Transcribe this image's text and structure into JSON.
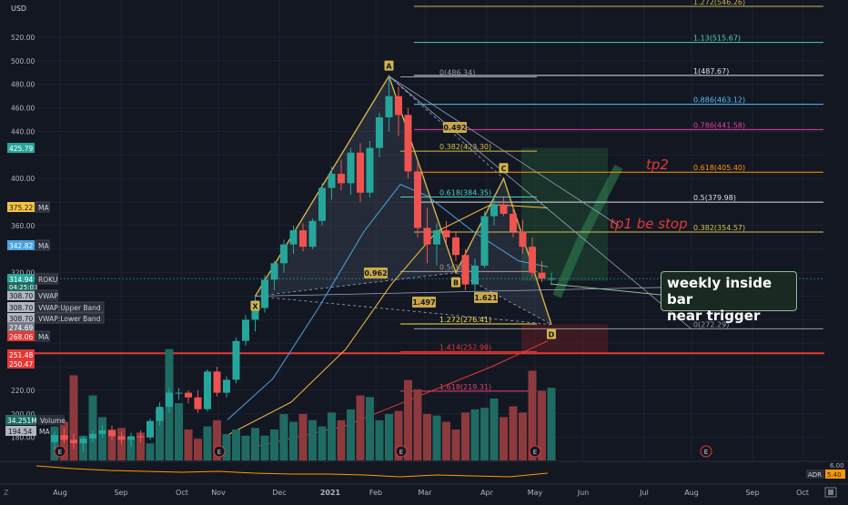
{
  "chart_data": {
    "type": "candlestick",
    "currency": "USD",
    "symbol_tag": "ROKU",
    "last_price": "314.94",
    "countdown": "04:25:03",
    "y_ticks": [
      "520.00",
      "500.00",
      "480.00",
      "460.00",
      "440.00",
      "425.79",
      "400.00",
      "375.22",
      "360.00",
      "342.82",
      "320.00",
      "314.94",
      "308.70",
      "308.70",
      "308.70",
      "274.69",
      "268.06",
      "251.48",
      "250.47",
      "220.00",
      "200.00",
      "180.00"
    ],
    "x_ticks": [
      "Aug",
      "Sep",
      "Oct",
      "Nov",
      "Dec",
      "2021",
      "Feb",
      "Mar",
      "Apr",
      "May",
      "Jun",
      "Jul",
      "Aug",
      "Sep",
      "Oct"
    ],
    "price_tags": [
      {
        "price": "425.79",
        "color": "#26a69a",
        "label": ""
      },
      {
        "price": "375.22",
        "color": "#f5c242",
        "label": "MA"
      },
      {
        "price": "342.82",
        "color": "#4aa3df",
        "label": "MA"
      },
      {
        "price": "314.94",
        "color": "#26a69a",
        "label": "ROKU"
      },
      {
        "price": "308.70",
        "color": "#b2b5be",
        "label": "VWAP"
      },
      {
        "price": "308.70",
        "color": "#b2b5be",
        "label": "VWAP:Upper Band"
      },
      {
        "price": "308.70",
        "color": "#b2b5be",
        "label": "VWAP:Lower Band"
      },
      {
        "price": "274.69",
        "color": "#787b86",
        "label": ""
      },
      {
        "price": "268.06",
        "color": "#e53935",
        "label": "MA"
      },
      {
        "price": "251.48",
        "color": "#e53935",
        "label": ""
      },
      {
        "price": "250.47",
        "color": "#e53935",
        "label": ""
      }
    ],
    "candles": [
      [
        176,
        185,
        170,
        182
      ],
      [
        182,
        188,
        175,
        178
      ],
      [
        178,
        183,
        170,
        175
      ],
      [
        175,
        181,
        168,
        179
      ],
      [
        179,
        186,
        176,
        183
      ],
      [
        183,
        190,
        180,
        186
      ],
      [
        186,
        190,
        178,
        181
      ],
      [
        181,
        185,
        174,
        178
      ],
      [
        178,
        184,
        172,
        181
      ],
      [
        181,
        186,
        176,
        180
      ],
      [
        180,
        196,
        178,
        194
      ],
      [
        194,
        210,
        190,
        206
      ],
      [
        206,
        222,
        201,
        218
      ],
      [
        218,
        222,
        212,
        218
      ],
      [
        218,
        220,
        209,
        214
      ],
      [
        214,
        220,
        201,
        204
      ],
      [
        204,
        238,
        202,
        236
      ],
      [
        236,
        240,
        215,
        218
      ],
      [
        218,
        232,
        214,
        229
      ],
      [
        229,
        265,
        226,
        262
      ],
      [
        262,
        284,
        258,
        280
      ],
      [
        280,
        300,
        270,
        290
      ],
      [
        290,
        318,
        286,
        314
      ],
      [
        314,
        330,
        305,
        328
      ],
      [
        328,
        348,
        320,
        344
      ],
      [
        344,
        360,
        336,
        356
      ],
      [
        356,
        362,
        338,
        342
      ],
      [
        342,
        366,
        340,
        364
      ],
      [
        364,
        396,
        360,
        392
      ],
      [
        392,
        410,
        382,
        404
      ],
      [
        404,
        416,
        390,
        396
      ],
      [
        396,
        426,
        386,
        422
      ],
      [
        422,
        430,
        380,
        388
      ],
      [
        388,
        432,
        384,
        426
      ],
      [
        426,
        456,
        418,
        452
      ],
      [
        452,
        487,
        440,
        470
      ],
      [
        470,
        478,
        436,
        454
      ],
      [
        454,
        460,
        400,
        406
      ],
      [
        406,
        414,
        350,
        358
      ],
      [
        358,
        375,
        328,
        344
      ],
      [
        344,
        362,
        326,
        356
      ],
      [
        356,
        364,
        345,
        350
      ],
      [
        350,
        354,
        330,
        335
      ],
      [
        335,
        340,
        305,
        310
      ],
      [
        310,
        332,
        302,
        326
      ],
      [
        326,
        372,
        324,
        368
      ],
      [
        368,
        386,
        360,
        378
      ],
      [
        378,
        385,
        368,
        370
      ],
      [
        370,
        376,
        350,
        355
      ],
      [
        355,
        365,
        336,
        342
      ],
      [
        342,
        350,
        316,
        320
      ],
      [
        320,
        330,
        312,
        315
      ],
      [
        315,
        320,
        310,
        315
      ]
    ],
    "volumes": [
      22,
      25,
      55,
      16,
      42,
      28,
      20,
      21,
      14,
      18,
      11,
      33,
      72,
      37,
      20,
      14,
      22,
      26,
      17,
      20,
      16,
      21,
      16,
      20,
      30,
      25,
      30,
      26,
      22,
      31,
      26,
      33,
      42,
      41,
      26,
      30,
      32,
      52,
      46,
      30,
      29,
      25,
      20,
      31,
      33,
      34,
      40,
      28,
      35,
      31,
      58,
      45,
      47
    ],
    "up_color": "#26a69a",
    "down_color": "#ef5350",
    "ylim": [
      170,
      550
    ],
    "fib_right": [
      {
        "ratio": "1.272(546.26)",
        "price": 546.26,
        "color": "#c9b458"
      },
      {
        "ratio": "1.13(515.67)",
        "price": 515.67,
        "color": "#4dd0c0"
      },
      {
        "ratio": "1(487.67)",
        "price": 487.67,
        "color": "#e0e0e0"
      },
      {
        "ratio": "0.886(463.12)",
        "price": 463.12,
        "color": "#4fc3f7"
      },
      {
        "ratio": "0.786(441.58)",
        "price": 441.58,
        "color": "#e040a0"
      },
      {
        "ratio": "0.618(405.40)",
        "price": 405.4,
        "color": "#ff9800"
      },
      {
        "ratio": "0.5(379.98)",
        "price": 379.98,
        "color": "#e0e0e0"
      },
      {
        "ratio": "0.382(354.57)",
        "price": 354.57,
        "color": "#d4c24a"
      },
      {
        "ratio": "0(272.29)",
        "price": 272.29,
        "color": "#9e9e9e"
      }
    ],
    "fib_left": [
      {
        "ratio": "0(486.34)",
        "price": 486.34,
        "color": "#9e9e9e"
      },
      {
        "ratio": "0.382(423.30)",
        "price": 423.3,
        "color": "#d4c24a"
      },
      {
        "ratio": "0.618(384.35)",
        "price": 384.35,
        "color": "#4dd0c0"
      },
      {
        "ratio": "0.5(321.)",
        "price": 321.0,
        "color": "#9e9e9e"
      },
      {
        "ratio": "1.272(276.41)",
        "price": 276.41,
        "color": "#f5e14a"
      },
      {
        "ratio": "1.414(252.98)",
        "price": 252.98,
        "color": "#e53935"
      },
      {
        "ratio": "1.618(219.31)",
        "price": 219.31,
        "color": "#e04070"
      }
    ],
    "pattern_points": [
      {
        "label": "X",
        "idx": 21,
        "price": 300
      },
      {
        "label": "A",
        "idx": 35,
        "price": 487
      },
      {
        "label": "B",
        "idx": 42,
        "price": 320
      },
      {
        "label": "C",
        "idx": 47,
        "price": 400
      },
      {
        "label": "D",
        "idx": 52,
        "price": 276
      }
    ],
    "pattern_ratios": [
      "0.492",
      "0.962",
      "1.497",
      "1.621"
    ],
    "text_annotations": [
      "tp2",
      "tp1 be stop"
    ],
    "callout": [
      "weekly inside bar",
      "near trigger"
    ],
    "volume_label": "34.251M",
    "volume_name": "Volume",
    "vol_ma_value": "194.54",
    "vol_ma_name": "MA",
    "earnings_marker": "E",
    "adr_label": "ADR",
    "adr_value": "5.40",
    "adr_axis": "6.00",
    "corner_left": "Z"
  }
}
